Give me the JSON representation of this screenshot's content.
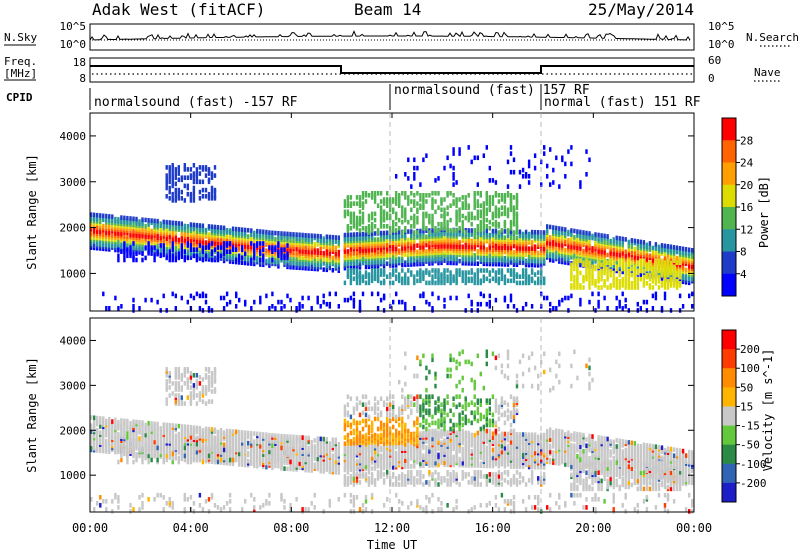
{
  "header": {
    "station": "Adak West (fitACF)",
    "beam": "Beam 14",
    "date": "25/May/2014"
  },
  "noise_panel": {
    "left_label": "N.Sky",
    "left_ticks": [
      "10^5",
      "10^0"
    ],
    "right_label": "N.Search",
    "right_ticks": [
      "10^5",
      "10^0"
    ]
  },
  "freq_panel": {
    "left_label_1": "Freq.",
    "left_label_2": "[MHz]",
    "left_ticks": [
      "18",
      "8"
    ],
    "right_ticks": [
      "60",
      "0"
    ],
    "right_label": "Nave"
  },
  "cpid": {
    "label": "CPID",
    "segments": [
      {
        "text": "normalsound (fast) -157 RF",
        "start_hour": 0
      },
      {
        "text": "normalsound (fast) 157 RF",
        "start_hour": 12
      },
      {
        "text": "normal (fast) 151 RF",
        "start_hour": 18
      }
    ]
  },
  "chart_data": [
    {
      "type": "heatmap",
      "name": "Power",
      "xlabel": "",
      "ylabel": "Slant Range [km]",
      "xlim": [
        0,
        24
      ],
      "ylim": [
        180,
        4500
      ],
      "y_ticks": [
        1000,
        2000,
        3000,
        4000
      ],
      "colorbar": {
        "label": "Power [dB]",
        "ticks": [
          "4",
          "8",
          "12",
          "16",
          "20",
          "24",
          "28"
        ],
        "colors": [
          "#0000ff",
          "#1e3cc8",
          "#2896a0",
          "#50b450",
          "#dcdc00",
          "#ffa000",
          "#ff6400",
          "#ff0000"
        ]
      }
    },
    {
      "type": "heatmap",
      "name": "Velocity",
      "xlabel": "Time UT",
      "ylabel": "Slant Range [km]",
      "xlim": [
        0,
        24
      ],
      "ylim": [
        180,
        4500
      ],
      "y_ticks": [
        1000,
        2000,
        3000,
        4000
      ],
      "x_ticks": [
        "00:00",
        "04:00",
        "08:00",
        "12:00",
        "16:00",
        "20:00",
        "00:00"
      ],
      "colorbar": {
        "label": "Velocity [m s^-1]",
        "ticks": [
          "200",
          "100",
          "50",
          "15",
          "-15",
          "-50",
          "-100",
          "-200"
        ],
        "colors": [
          "#1e1ec8",
          "#3264b4",
          "#2a8a46",
          "#64c83c",
          "#c8c8c8",
          "#ffb400",
          "#ff8c00",
          "#ff3c00",
          "#ff0000"
        ]
      }
    }
  ]
}
